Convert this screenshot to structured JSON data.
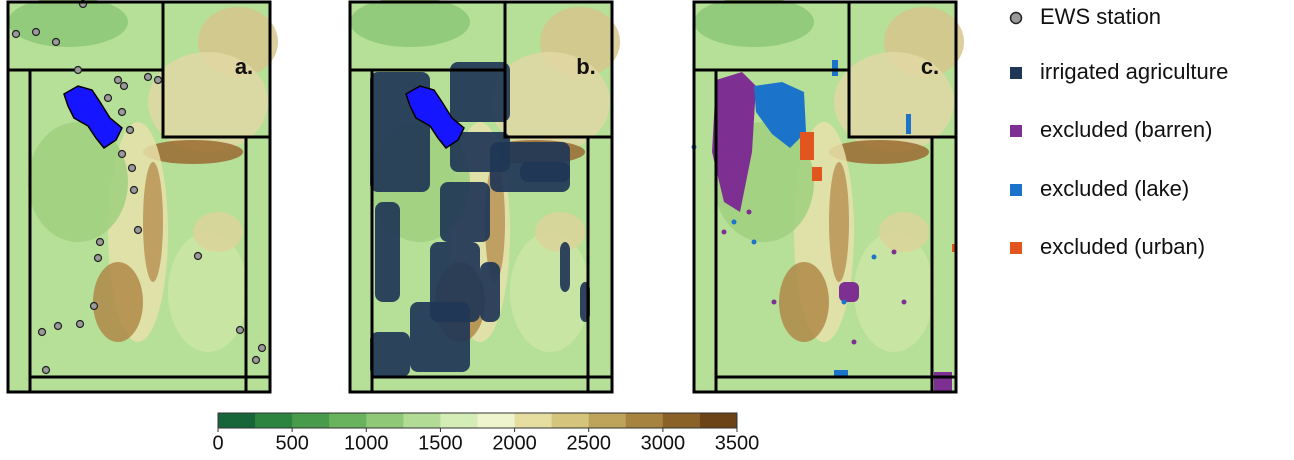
{
  "panels": [
    {
      "label": "a."
    },
    {
      "label": "b."
    },
    {
      "label": "c."
    }
  ],
  "legend": [
    {
      "label": "EWS station",
      "color": "#9a9a9a",
      "marker": "circle"
    },
    {
      "label": "irrigated agriculture",
      "color": "#1f3656",
      "marker": "square"
    },
    {
      "label": "excluded (barren)",
      "color": "#7d2f92",
      "marker": "square"
    },
    {
      "label": "excluded (lake)",
      "color": "#1b74c9",
      "marker": "square"
    },
    {
      "label": "excluded (urban)",
      "color": "#e0561e",
      "marker": "square"
    }
  ],
  "colorbar": {
    "lim": [
      0,
      3500
    ],
    "ticks": [
      0,
      500,
      1000,
      1500,
      2000,
      2500,
      3000,
      3500
    ],
    "colors": [
      "#17663a",
      "#2d843f",
      "#489b4a",
      "#6ab35e",
      "#8fc877",
      "#b2dc95",
      "#d4ecb6",
      "#eef4cd",
      "#e6dea0",
      "#d4c47c",
      "#bea45a",
      "#a6833e",
      "#8a6228",
      "#6b4317"
    ]
  }
}
